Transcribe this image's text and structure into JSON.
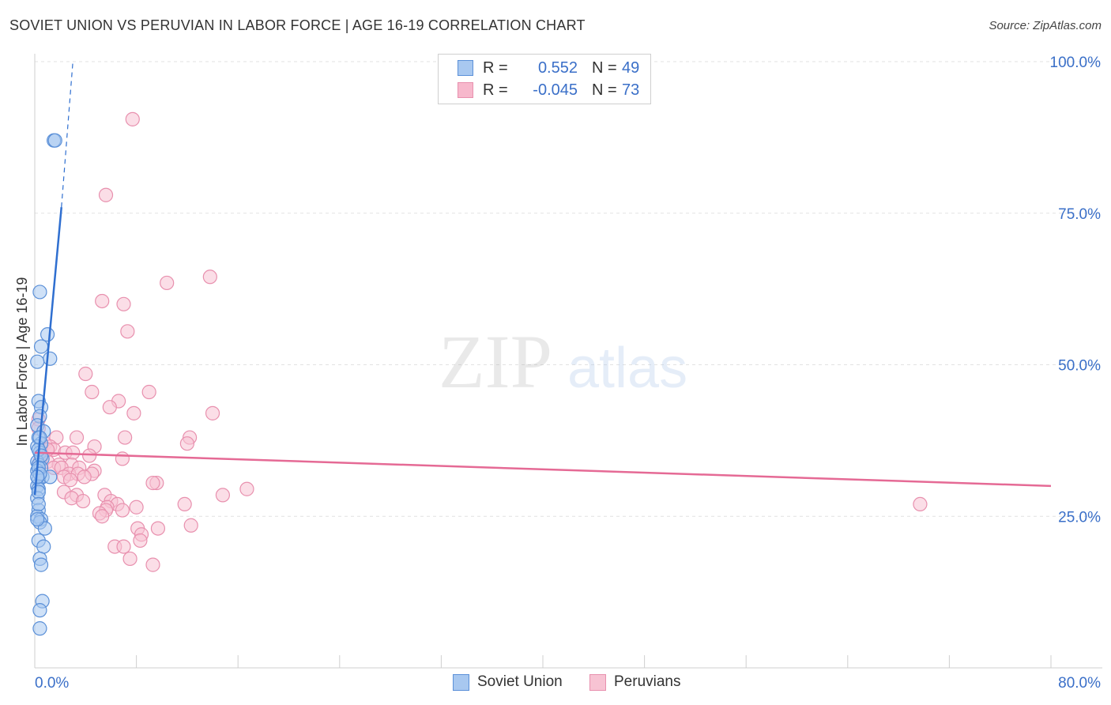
{
  "header": {
    "title": "SOVIET UNION VS PERUVIAN IN LABOR FORCE | AGE 16-19 CORRELATION CHART",
    "source": "Source: ZipAtlas.com"
  },
  "watermark": {
    "zip": "ZIP",
    "atlas": "atlas"
  },
  "legend": {
    "rows": [
      {
        "r_label": "R =",
        "r_value": "0.552",
        "n_label": "N =",
        "n_value": "49",
        "color": "#a8c8f0"
      },
      {
        "r_label": "R =",
        "r_value": "-0.045",
        "n_label": "N =",
        "n_value": "73",
        "color": "#f7b8cc"
      }
    ]
  },
  "colors": {
    "soviet_fill": "#a8c8f0",
    "soviet_stroke": "#5b90d8",
    "soviet_line": "#2f6fd0",
    "peru_fill": "#f7c3d3",
    "peru_stroke": "#e890ae",
    "peru_line": "#e56a95",
    "tick_text": "#3a6fc8"
  },
  "chart_data": {
    "type": "scatter",
    "title": "SOVIET UNION VS PERUVIAN IN LABOR FORCE | AGE 16-19 CORRELATION CHART",
    "xlabel": "",
    "ylabel": "In Labor Force | Age 16-19",
    "xlim": [
      0,
      80
    ],
    "ylim": [
      0,
      100
    ],
    "x_tick_labels": [
      "0.0%",
      "80.0%"
    ],
    "y_ticks": [
      25,
      50,
      75,
      100
    ],
    "y_tick_labels": [
      "25.0%",
      "50.0%",
      "75.0%",
      "100.0%"
    ],
    "grid": true,
    "legend_position": "top-center",
    "series": [
      {
        "name": "Soviet Union",
        "points": [
          [
            1.5,
            87
          ],
          [
            1.6,
            87
          ],
          [
            0.4,
            62
          ],
          [
            1.0,
            55
          ],
          [
            0.5,
            53
          ],
          [
            1.2,
            51
          ],
          [
            0.2,
            50.5
          ],
          [
            0.3,
            44
          ],
          [
            0.5,
            43
          ],
          [
            0.4,
            41.5
          ],
          [
            0.2,
            40
          ],
          [
            0.7,
            39
          ],
          [
            0.3,
            38
          ],
          [
            0.5,
            37
          ],
          [
            0.2,
            36.5
          ],
          [
            0.4,
            35.5
          ],
          [
            0.6,
            34.5
          ],
          [
            0.2,
            34
          ],
          [
            0.3,
            33.5
          ],
          [
            0.5,
            33
          ],
          [
            0.2,
            32.5
          ],
          [
            0.4,
            32
          ],
          [
            0.6,
            31.5
          ],
          [
            0.3,
            31
          ],
          [
            0.2,
            30
          ],
          [
            1.2,
            31.5
          ],
          [
            0.3,
            29.5
          ],
          [
            0.2,
            28
          ],
          [
            0.3,
            26
          ],
          [
            0.2,
            25
          ],
          [
            0.5,
            24.5
          ],
          [
            0.4,
            24
          ],
          [
            0.8,
            23
          ],
          [
            0.3,
            21
          ],
          [
            0.7,
            20
          ],
          [
            0.4,
            18
          ],
          [
            0.5,
            17
          ],
          [
            0.6,
            11
          ],
          [
            0.4,
            9.5
          ],
          [
            0.4,
            6.5
          ],
          [
            0.3,
            36
          ],
          [
            0.5,
            35
          ],
          [
            0.3,
            33
          ],
          [
            0.4,
            32
          ],
          [
            0.2,
            31.5
          ],
          [
            0.3,
            29
          ],
          [
            0.2,
            24.5
          ],
          [
            0.3,
            27
          ],
          [
            0.4,
            38
          ]
        ],
        "trend": {
          "x": [
            0,
            2.1
          ],
          "y": [
            28.5,
            76
          ],
          "dashed_to": [
            3,
            100
          ]
        }
      },
      {
        "name": "Peruvians",
        "points": [
          [
            7.7,
            90.5
          ],
          [
            5.6,
            78
          ],
          [
            13.8,
            64.5
          ],
          [
            10.4,
            63.5
          ],
          [
            5.3,
            60.5
          ],
          [
            7.0,
            60
          ],
          [
            7.3,
            55.5
          ],
          [
            4.0,
            48.5
          ],
          [
            9.0,
            45.5
          ],
          [
            4.5,
            45.5
          ],
          [
            6.6,
            44
          ],
          [
            5.9,
            43
          ],
          [
            7.8,
            42
          ],
          [
            14.0,
            42
          ],
          [
            0.3,
            41
          ],
          [
            0.3,
            39.5
          ],
          [
            1.7,
            38
          ],
          [
            3.3,
            38
          ],
          [
            7.1,
            38
          ],
          [
            12.2,
            38
          ],
          [
            0.8,
            37
          ],
          [
            1.2,
            36.5
          ],
          [
            4.7,
            36.5
          ],
          [
            12.0,
            37
          ],
          [
            1.5,
            36
          ],
          [
            2.4,
            35.5
          ],
          [
            0.6,
            35
          ],
          [
            3.0,
            35.5
          ],
          [
            4.3,
            35
          ],
          [
            6.9,
            34.5
          ],
          [
            1.0,
            34
          ],
          [
            1.9,
            33.5
          ],
          [
            2.9,
            33.5
          ],
          [
            0.4,
            34
          ],
          [
            1.5,
            33
          ],
          [
            2.1,
            33
          ],
          [
            3.5,
            33
          ],
          [
            4.7,
            32.5
          ],
          [
            2.7,
            32
          ],
          [
            3.4,
            32
          ],
          [
            4.5,
            32
          ],
          [
            2.3,
            31.5
          ],
          [
            3.9,
            31.5
          ],
          [
            2.8,
            31
          ],
          [
            9.6,
            30.5
          ],
          [
            9.3,
            30.5
          ],
          [
            16.7,
            29.5
          ],
          [
            2.3,
            29
          ],
          [
            3.3,
            28.5
          ],
          [
            5.5,
            28.5
          ],
          [
            14.8,
            28.5
          ],
          [
            2.9,
            28
          ],
          [
            3.8,
            27.5
          ],
          [
            6.0,
            27.5
          ],
          [
            6.5,
            27
          ],
          [
            11.8,
            27
          ],
          [
            5.7,
            26.5
          ],
          [
            8.0,
            26.5
          ],
          [
            5.6,
            26
          ],
          [
            6.9,
            26
          ],
          [
            5.1,
            25.5
          ],
          [
            5.3,
            25
          ],
          [
            8.1,
            23
          ],
          [
            9.7,
            23
          ],
          [
            12.3,
            23.5
          ],
          [
            8.4,
            22
          ],
          [
            8.3,
            21
          ],
          [
            6.3,
            20
          ],
          [
            7.0,
            20
          ],
          [
            7.5,
            18
          ],
          [
            9.3,
            17
          ],
          [
            69.7,
            27
          ],
          [
            1.0,
            36
          ]
        ],
        "trend": {
          "x": [
            0,
            80
          ],
          "y": [
            35.5,
            30
          ]
        }
      }
    ]
  }
}
